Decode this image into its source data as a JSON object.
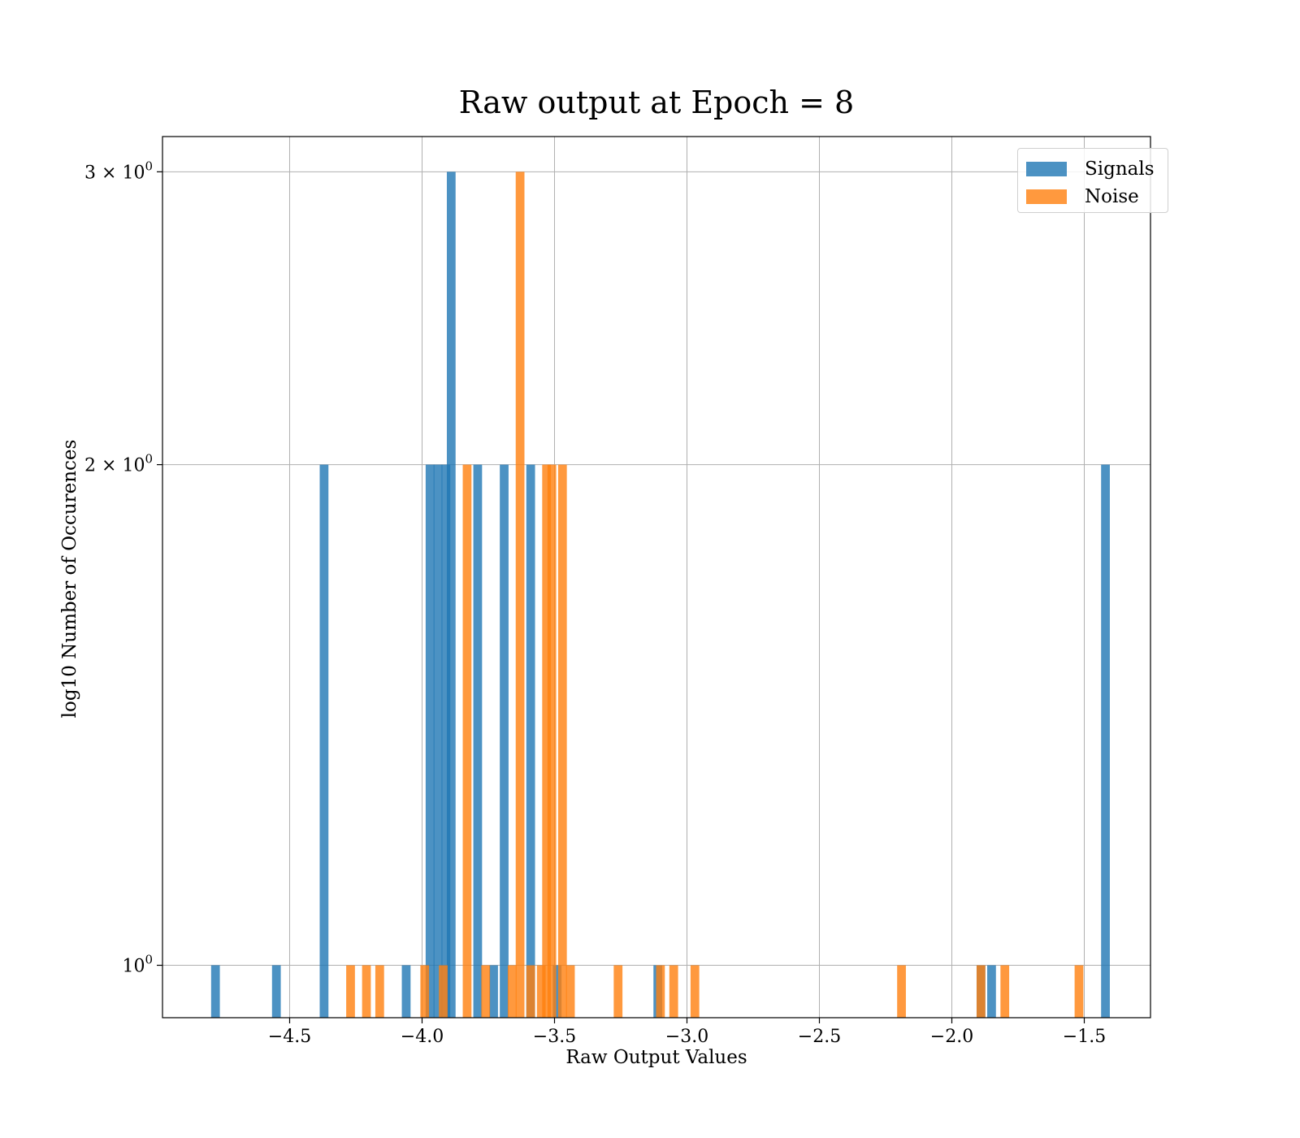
{
  "chart_data": {
    "type": "bar",
    "title": "Raw output at Epoch = 8",
    "xlabel": "Raw Output Values",
    "ylabel": "log10 Number of Occurences",
    "yscale": "log",
    "xlim": [
      -4.98,
      -1.25
    ],
    "ylim": [
      0.93,
      3.15
    ],
    "grid": true,
    "legend_position": "top-right",
    "bin_width": 0.033,
    "x_ticks": [
      {
        "value": -4.5,
        "label": "−4.5"
      },
      {
        "value": -4.0,
        "label": "−4.0"
      },
      {
        "value": -3.5,
        "label": "−3.5"
      },
      {
        "value": -3.0,
        "label": "−3.0"
      },
      {
        "value": -2.5,
        "label": "−2.5"
      },
      {
        "value": -2.0,
        "label": "−2.0"
      },
      {
        "value": -1.5,
        "label": "−1.5"
      }
    ],
    "y_ticks": [
      {
        "value": 1,
        "base": "10",
        "exp": "0"
      },
      {
        "value": 2,
        "base": "2 × 10",
        "exp": "0"
      },
      {
        "value": 3,
        "base": "3 × 10",
        "exp": "0"
      }
    ],
    "series": [
      {
        "name": "Signals",
        "color": "#1f77b4",
        "bins": [
          {
            "x": -4.78,
            "count": 1
          },
          {
            "x": -4.55,
            "count": 1
          },
          {
            "x": -4.37,
            "count": 2
          },
          {
            "x": -4.06,
            "count": 1
          },
          {
            "x": -3.97,
            "count": 2
          },
          {
            "x": -3.94,
            "count": 2
          },
          {
            "x": -3.91,
            "count": 2
          },
          {
            "x": -3.89,
            "count": 3
          },
          {
            "x": -3.79,
            "count": 2
          },
          {
            "x": -3.73,
            "count": 1
          },
          {
            "x": -3.69,
            "count": 2
          },
          {
            "x": -3.59,
            "count": 2
          },
          {
            "x": -3.49,
            "count": 1
          },
          {
            "x": -3.11,
            "count": 1
          },
          {
            "x": -1.89,
            "count": 1
          },
          {
            "x": -1.85,
            "count": 1
          },
          {
            "x": -1.42,
            "count": 2
          }
        ]
      },
      {
        "name": "Noise",
        "color": "#ff7f0e",
        "bins": [
          {
            "x": -4.27,
            "count": 1
          },
          {
            "x": -4.21,
            "count": 1
          },
          {
            "x": -4.16,
            "count": 1
          },
          {
            "x": -3.99,
            "count": 1
          },
          {
            "x": -3.92,
            "count": 1
          },
          {
            "x": -3.83,
            "count": 2
          },
          {
            "x": -3.76,
            "count": 1
          },
          {
            "x": -3.66,
            "count": 1
          },
          {
            "x": -3.63,
            "count": 3
          },
          {
            "x": -3.59,
            "count": 1
          },
          {
            "x": -3.55,
            "count": 1
          },
          {
            "x": -3.53,
            "count": 2
          },
          {
            "x": -3.51,
            "count": 2
          },
          {
            "x": -3.47,
            "count": 2
          },
          {
            "x": -3.44,
            "count": 1
          },
          {
            "x": -3.26,
            "count": 1
          },
          {
            "x": -3.1,
            "count": 1
          },
          {
            "x": -3.05,
            "count": 1
          },
          {
            "x": -2.97,
            "count": 1
          },
          {
            "x": -2.19,
            "count": 1
          },
          {
            "x": -1.89,
            "count": 1
          },
          {
            "x": -1.8,
            "count": 1
          },
          {
            "x": -1.52,
            "count": 1
          }
        ]
      }
    ]
  }
}
